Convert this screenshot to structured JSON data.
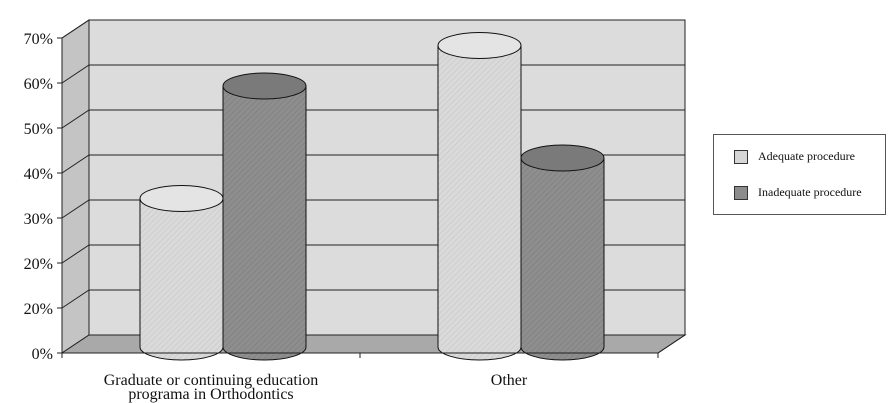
{
  "chart_data": {
    "type": "bar",
    "categories": [
      "Graduate or continuing education programa in Orthodontics",
      "Other"
    ],
    "category_lines": [
      [
        "Graduate or continuing education",
        "programa in Orthodontics"
      ],
      [
        "Other"
      ]
    ],
    "series": [
      {
        "name": "Adequate procedure",
        "values": [
          33,
          67
        ],
        "color": "#d6d6d6"
      },
      {
        "name": "Inadequate procedure",
        "values": [
          58,
          42
        ],
        "color": "#8c8c8c"
      }
    ],
    "y_tick_labels": [
      "0%",
      "20%",
      "20%",
      "30%",
      "40%",
      "50%",
      "60%",
      "70%"
    ],
    "ylim": [
      0,
      70
    ],
    "ytick_step": 10,
    "grid": true,
    "legend_position": "right",
    "style": "3d-cylinder",
    "wall_color": "#dcdcdc",
    "floor_color": "#a9a9a9",
    "title": "",
    "xlabel": "",
    "ylabel": ""
  }
}
